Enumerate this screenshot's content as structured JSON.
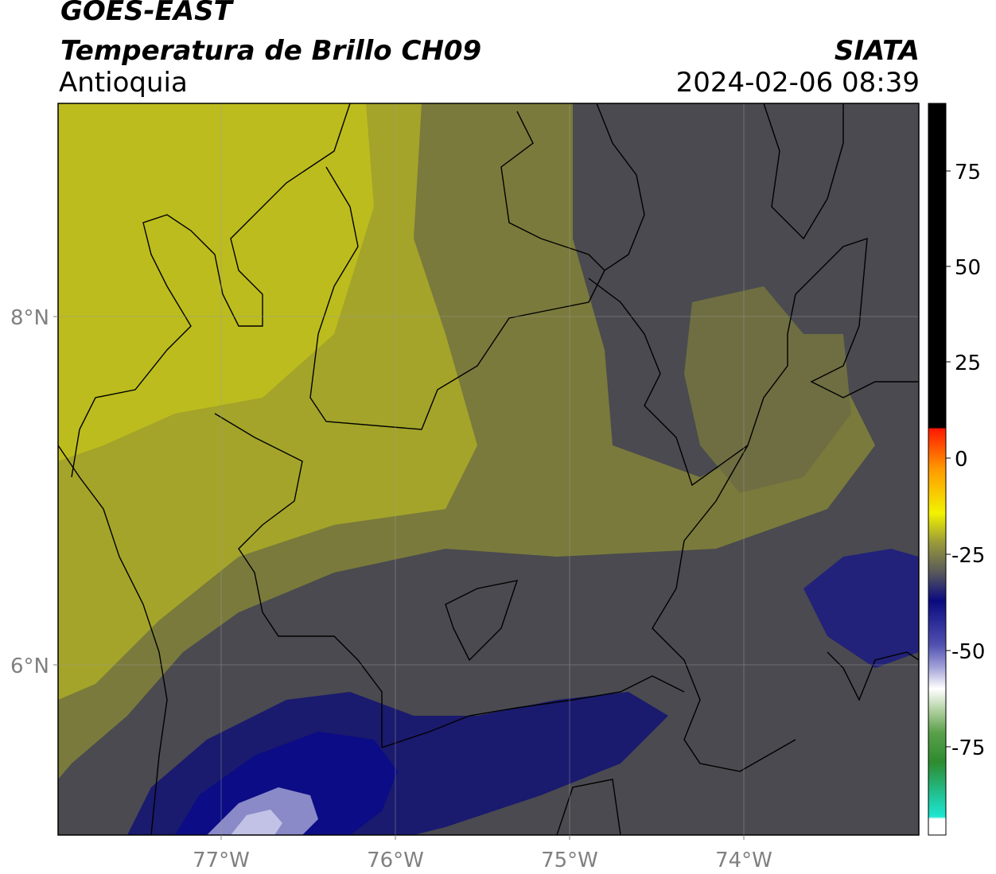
{
  "header": {
    "satellite": "GOES-EAST",
    "product": "Temperatura de Brillo CH09",
    "region": "Antioquia",
    "organization": "SIATA",
    "timestamp": "2024-02-06 08:39"
  },
  "map": {
    "lon_labels": [
      "77°W",
      "76°W",
      "75°W",
      "74°W"
    ],
    "lat_labels": [
      "8°N",
      "6°N"
    ],
    "colors": {
      "yellow": "#bcbc1e",
      "olive": "#7a7a3c",
      "grey": "#4a4a50",
      "navy": "#14147a",
      "lavender": "#9a9ad2"
    }
  },
  "colorbar": {
    "ticks": [
      "75",
      "50",
      "25",
      "0",
      "-25",
      "-50",
      "-75"
    ],
    "colors": {
      "black": "#000000",
      "red": "#ff1a00",
      "orange": "#ff9a00",
      "yellow": "#f2f200",
      "grey": "#5a5a5a",
      "navy": "#0a0a80",
      "white": "#ffffff",
      "green": "#2e8b2e",
      "cyan": "#1ee6d2"
    }
  }
}
